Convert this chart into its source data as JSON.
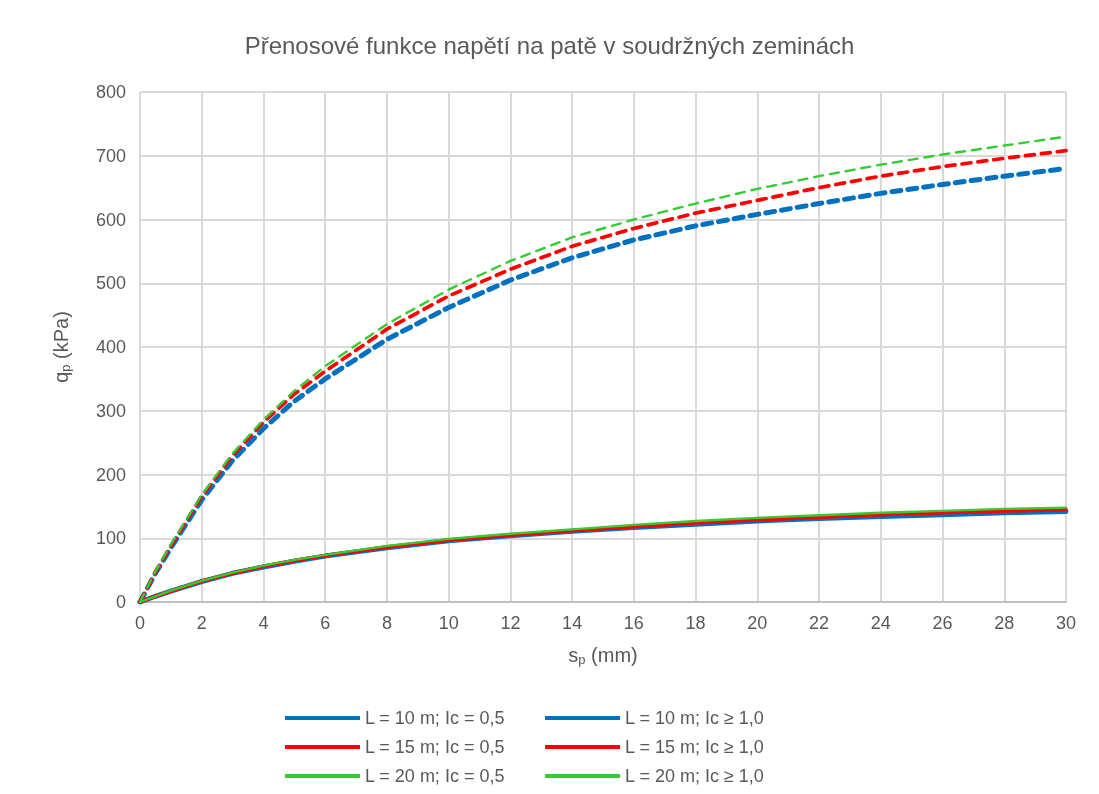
{
  "chart_data": {
    "type": "line",
    "title": "Přenosové funkce napětí na patě v soudržných zeminách",
    "xlabel": "s$_{p}$ (mm)",
    "ylabel": "q$_{p}$ (kPa)",
    "x": [
      0,
      0.5,
      1,
      2,
      3,
      4,
      5,
      6,
      8,
      10,
      12,
      14,
      16,
      18,
      20,
      22,
      24,
      26,
      28,
      30
    ],
    "xlim": [
      0,
      30
    ],
    "xticks": [
      0,
      2,
      4,
      6,
      8,
      10,
      12,
      14,
      16,
      18,
      20,
      22,
      24,
      26,
      28,
      30
    ],
    "ylim": [
      0,
      800
    ],
    "yticks": [
      0,
      100,
      200,
      300,
      400,
      500,
      600,
      700,
      800
    ],
    "grid": true,
    "legend": "bottom",
    "marker": "none",
    "series": [
      {
        "name": "L = 10 m; Ic = 0,5",
        "color": "#0070c0",
        "line_style": "solid",
        "values": [
          0,
          9,
          17,
          32,
          45,
          55,
          64,
          72,
          85,
          96,
          104,
          111,
          117,
          122,
          127,
          131,
          134,
          137,
          140,
          142
        ]
      },
      {
        "name": "L = 10 m; Ic ≥ 1,0",
        "color": "#0070c0",
        "line_style": "dashed",
        "values": [
          0,
          45,
          85,
          160,
          222,
          272,
          315,
          350,
          412,
          462,
          505,
          540,
          568,
          590,
          608,
          625,
          641,
          655,
          668,
          680
        ]
      },
      {
        "name": "L = 15 m; Ic = 0,5",
        "color": "#ff0000",
        "line_style": "solid",
        "values": [
          0,
          9,
          17,
          33,
          45,
          56,
          65,
          73,
          86,
          97,
          105,
          112,
          118,
          124,
          129,
          133,
          137,
          140,
          143,
          145
        ]
      },
      {
        "name": "L = 15 m; Ic ≥ 1,0",
        "color": "#ff0000",
        "line_style": "dashed",
        "values": [
          0,
          47,
          88,
          166,
          230,
          282,
          326,
          362,
          428,
          480,
          522,
          558,
          586,
          610,
          630,
          650,
          668,
          683,
          696,
          708
        ]
      },
      {
        "name": "L = 20 m; Ic = 0,5",
        "color": "#33cc33",
        "line_style": "solid",
        "values": [
          0,
          9,
          18,
          33,
          46,
          57,
          66,
          74,
          88,
          99,
          107,
          114,
          121,
          127,
          132,
          136,
          140,
          143,
          146,
          148
        ]
      },
      {
        "name": "L = 20 m; Ic ≥ 1,0",
        "color": "#33cc33",
        "line_style": "dashed",
        "values": [
          0,
          48,
          90,
          168,
          233,
          286,
          331,
          370,
          436,
          490,
          535,
          572,
          600,
          625,
          648,
          668,
          686,
          702,
          716,
          730
        ]
      }
    ]
  }
}
